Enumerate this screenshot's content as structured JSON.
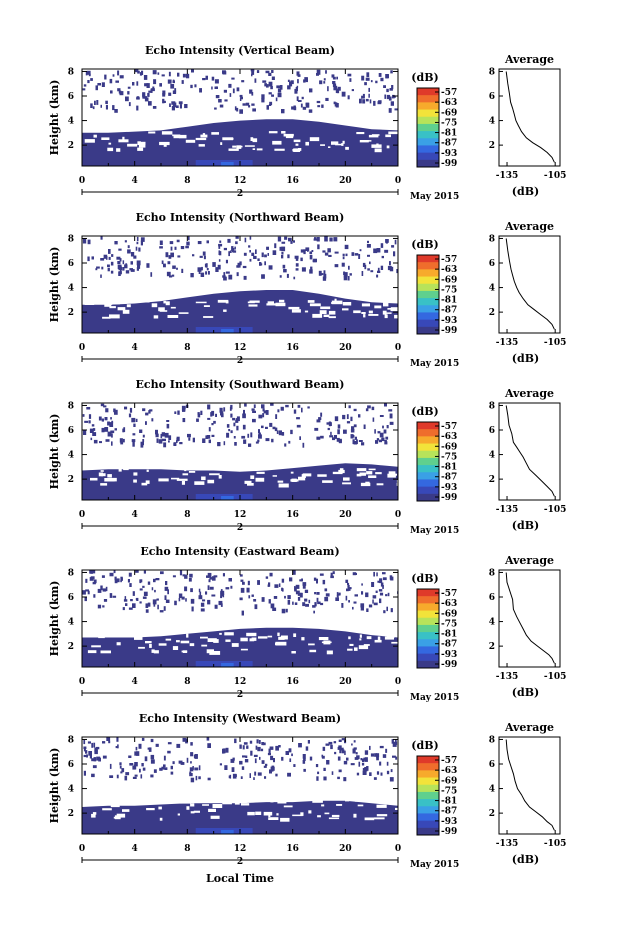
{
  "chart_data": [
    {
      "type": "heatmap",
      "title": "Echo Intensity (Vertical Beam)",
      "ylabel": "Height (km)",
      "yticks": [
        "8",
        "6",
        "4",
        "2"
      ],
      "xticks": [
        "0",
        "4",
        "8",
        "12",
        "16",
        "20",
        "0"
      ],
      "date_axis_label": "2",
      "date_suffix": "May 2015",
      "ylim": [
        0.3,
        8.2
      ],
      "xlim": [
        0,
        24
      ],
      "layer_top_km": [
        3.0,
        3.0,
        3.1,
        3.2,
        3.5,
        3.8,
        4.0,
        4.1,
        4.1,
        3.9,
        3.6,
        3.3,
        3.2
      ],
      "colorbar_label": "(dB)",
      "colorbar_ticks": [
        "-57",
        "-63",
        "-69",
        "-75",
        "-81",
        "-87",
        "-93",
        "-99"
      ],
      "colorbar_colors": [
        "#df3a2a",
        "#ef6d2c",
        "#f7aa2c",
        "#f2e33a",
        "#b7e35a",
        "#5fd08e",
        "#39c1c6",
        "#3aa0e6",
        "#3468e0",
        "#3848b8",
        "#3a3a88"
      ]
    },
    {
      "type": "heatmap",
      "title": "Echo Intensity (Northward Beam)",
      "ylabel": "Height (km)",
      "yticks": [
        "8",
        "6",
        "4",
        "2"
      ],
      "xticks": [
        "0",
        "4",
        "8",
        "12",
        "16",
        "20",
        "0"
      ],
      "date_axis_label": "2",
      "date_suffix": "May 2015",
      "ylim": [
        0.3,
        8.2
      ],
      "xlim": [
        0,
        24
      ],
      "layer_top_km": [
        2.6,
        2.6,
        2.7,
        2.9,
        3.2,
        3.5,
        3.7,
        3.8,
        3.8,
        3.5,
        3.1,
        2.8,
        2.7
      ],
      "colorbar_label": "(dB)",
      "colorbar_ticks": [
        "-57",
        "-63",
        "-69",
        "-75",
        "-81",
        "-87",
        "-93",
        "-99"
      ],
      "colorbar_colors": [
        "#df3a2a",
        "#ef6d2c",
        "#f7aa2c",
        "#f2e33a",
        "#b7e35a",
        "#5fd08e",
        "#39c1c6",
        "#3aa0e6",
        "#3468e0",
        "#3848b8",
        "#3a3a88"
      ]
    },
    {
      "type": "heatmap",
      "title": "Echo Intensity (Southward Beam)",
      "ylabel": "Height (km)",
      "yticks": [
        "8",
        "6",
        "4",
        "2"
      ],
      "xticks": [
        "0",
        "4",
        "8",
        "12",
        "16",
        "20",
        "0"
      ],
      "date_axis_label": "2",
      "date_suffix": "May 2015",
      "ylim": [
        0.3,
        8.2
      ],
      "xlim": [
        0,
        24
      ],
      "layer_top_km": [
        2.7,
        2.8,
        2.8,
        2.8,
        2.7,
        2.7,
        2.6,
        2.7,
        2.9,
        3.1,
        3.3,
        3.2,
        3.0
      ],
      "colorbar_label": "(dB)",
      "colorbar_ticks": [
        "-57",
        "-63",
        "-69",
        "-75",
        "-81",
        "-87",
        "-93",
        "-99"
      ],
      "colorbar_colors": [
        "#df3a2a",
        "#ef6d2c",
        "#f7aa2c",
        "#f2e33a",
        "#b7e35a",
        "#5fd08e",
        "#39c1c6",
        "#3aa0e6",
        "#3468e0",
        "#3848b8",
        "#3a3a88"
      ]
    },
    {
      "type": "heatmap",
      "title": "Echo Intensity (Eastward Beam)",
      "ylabel": "Height (km)",
      "yticks": [
        "8",
        "6",
        "4",
        "2"
      ],
      "xticks": [
        "0",
        "4",
        "8",
        "12",
        "16",
        "20",
        "0"
      ],
      "date_axis_label": "2",
      "date_suffix": "May 2015",
      "ylim": [
        0.3,
        8.2
      ],
      "xlim": [
        0,
        24
      ],
      "layer_top_km": [
        2.7,
        2.7,
        2.7,
        2.8,
        3.0,
        3.2,
        3.4,
        3.5,
        3.5,
        3.4,
        3.2,
        2.9,
        2.7
      ],
      "colorbar_label": "(dB)",
      "colorbar_ticks": [
        "-57",
        "-63",
        "-69",
        "-75",
        "-81",
        "-87",
        "-93",
        "-99"
      ],
      "colorbar_colors": [
        "#df3a2a",
        "#ef6d2c",
        "#f7aa2c",
        "#f2e33a",
        "#b7e35a",
        "#5fd08e",
        "#39c1c6",
        "#3aa0e6",
        "#3468e0",
        "#3848b8",
        "#3a3a88"
      ]
    },
    {
      "type": "heatmap",
      "title": "Echo Intensity (Westward Beam)",
      "ylabel": "Height (km)",
      "yticks": [
        "8",
        "6",
        "4",
        "2"
      ],
      "xticks": [
        "0",
        "4",
        "8",
        "12",
        "16",
        "20",
        "0"
      ],
      "date_axis_label": "2",
      "date_suffix": "May 2015",
      "ylim": [
        0.3,
        8.2
      ],
      "xlim": [
        0,
        24
      ],
      "layer_top_km": [
        2.5,
        2.6,
        2.6,
        2.7,
        2.8,
        2.8,
        2.8,
        2.9,
        2.9,
        3.0,
        3.0,
        2.8,
        2.6
      ],
      "colorbar_label": "(dB)",
      "colorbar_ticks": [
        "-57",
        "-63",
        "-69",
        "-75",
        "-81",
        "-87",
        "-93",
        "-99"
      ],
      "colorbar_colors": [
        "#df3a2a",
        "#ef6d2c",
        "#f7aa2c",
        "#f2e33a",
        "#b7e35a",
        "#5fd08e",
        "#39c1c6",
        "#3aa0e6",
        "#3468e0",
        "#3848b8",
        "#3a3a88"
      ],
      "xlabel": "Local Time"
    },
    {
      "type": "line",
      "title": "Average",
      "xlabel": "(dB)",
      "xticks": [
        "-135",
        "-105"
      ],
      "yticks": [
        "8",
        "6",
        "4",
        "2"
      ],
      "xlim": [
        -140,
        -102
      ],
      "ylim": [
        0.3,
        8.2
      ],
      "x": [
        -135.5,
        -134.5,
        -133.5,
        -132.8,
        -131.5,
        -130.5,
        -129.5,
        -128.0,
        -126.0,
        -123.0,
        -119.0,
        -114.0,
        -110.0,
        -107.0,
        -105.5
      ],
      "y": [
        8.0,
        7.0,
        6.2,
        5.5,
        5.0,
        4.5,
        4.0,
        3.6,
        3.1,
        2.6,
        2.2,
        1.8,
        1.4,
        1.0,
        0.6
      ]
    },
    {
      "type": "line",
      "title": "Average",
      "xlabel": "(dB)",
      "xticks": [
        "-135",
        "-105"
      ],
      "yticks": [
        "8",
        "6",
        "4",
        "2"
      ],
      "xlim": [
        -140,
        -102
      ],
      "ylim": [
        0.3,
        8.2
      ],
      "x": [
        -135.5,
        -134.5,
        -133.5,
        -132.5,
        -131.5,
        -130.5,
        -129.0,
        -127.5,
        -125.0,
        -122.0,
        -118.0,
        -114.0,
        -110.0,
        -107.0,
        -105.5
      ],
      "y": [
        8.0,
        7.0,
        6.2,
        5.5,
        5.0,
        4.5,
        4.0,
        3.6,
        3.1,
        2.6,
        2.2,
        1.8,
        1.4,
        1.0,
        0.6
      ]
    },
    {
      "type": "line",
      "title": "Average",
      "xlabel": "(dB)",
      "xticks": [
        "-135",
        "-105"
      ],
      "yticks": [
        "8",
        "6",
        "4",
        "2"
      ],
      "xlim": [
        -140,
        -102
      ],
      "ylim": [
        0.3,
        8.2
      ],
      "x": [
        -135.5,
        -134.5,
        -133.8,
        -132.0,
        -131.0,
        -129.0,
        -127.0,
        -125.0,
        -123.0,
        -121.0,
        -117.0,
        -113.0,
        -110.0,
        -107.0,
        -105.5
      ],
      "y": [
        8.0,
        7.2,
        6.4,
        5.7,
        5.0,
        4.6,
        4.2,
        3.8,
        3.3,
        2.8,
        2.3,
        1.8,
        1.4,
        1.0,
        0.6
      ]
    },
    {
      "type": "line",
      "title": "Average",
      "xlabel": "(dB)",
      "xticks": [
        "-135",
        "-105"
      ],
      "yticks": [
        "8",
        "6",
        "4",
        "2"
      ],
      "xlim": [
        -140,
        -102
      ],
      "ylim": [
        0.3,
        8.2
      ],
      "x": [
        -135.5,
        -135.0,
        -133.0,
        -131.5,
        -131.0,
        -129.0,
        -127.0,
        -125.0,
        -123.0,
        -120.0,
        -116.0,
        -112.0,
        -109.0,
        -107.0,
        -105.5
      ],
      "y": [
        8.0,
        7.2,
        6.4,
        5.8,
        5.0,
        4.4,
        3.9,
        3.4,
        2.9,
        2.4,
        2.0,
        1.6,
        1.3,
        1.0,
        0.6
      ]
    },
    {
      "type": "line",
      "title": "Average",
      "xlabel": "(dB)",
      "xticks": [
        "-135",
        "-105"
      ],
      "yticks": [
        "8",
        "6",
        "4",
        "2"
      ],
      "xlim": [
        -140,
        -102
      ],
      "ylim": [
        0.3,
        8.2
      ],
      "x": [
        -135.5,
        -135.0,
        -134.0,
        -132.5,
        -131.0,
        -130.0,
        -128.5,
        -126.0,
        -124.0,
        -121.0,
        -117.0,
        -113.0,
        -110.0,
        -107.0,
        -105.5
      ],
      "y": [
        8.0,
        7.2,
        6.4,
        5.8,
        5.2,
        4.6,
        4.0,
        3.5,
        3.0,
        2.5,
        2.1,
        1.7,
        1.3,
        1.0,
        0.6
      ]
    }
  ]
}
